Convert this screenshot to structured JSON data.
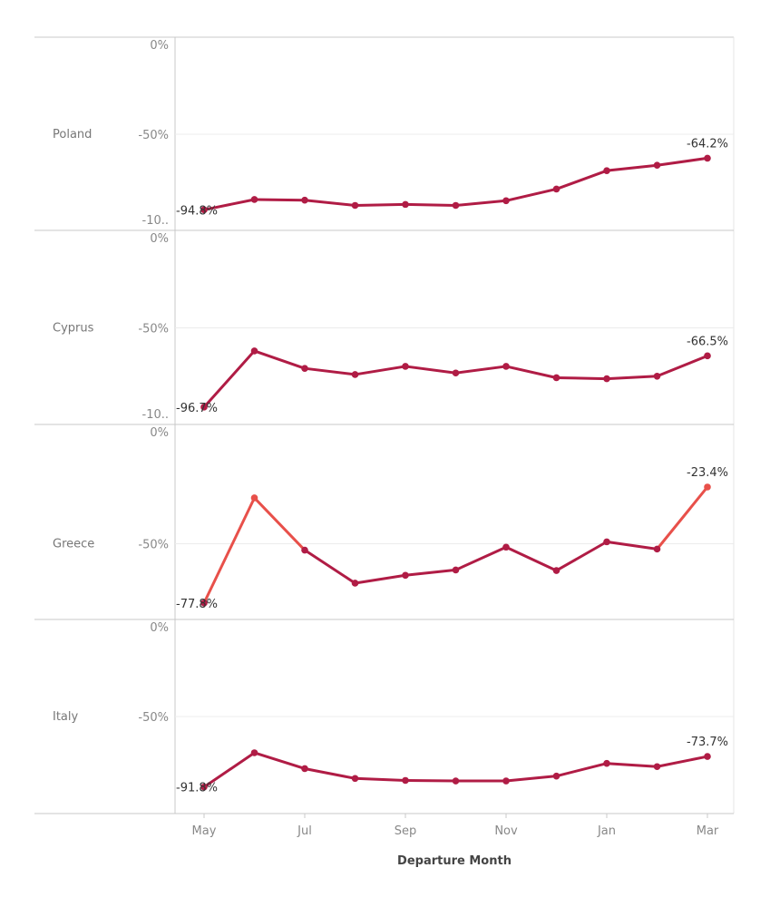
{
  "chart_data": {
    "type": "line",
    "x_title": "Departure Month",
    "x_tick_labels": [
      "May",
      "Jul",
      "Sep",
      "Nov",
      "Jan",
      "Mar"
    ],
    "x_tick_indices": [
      0,
      2,
      4,
      6,
      8,
      10
    ],
    "y_tick_labels": [
      "0%",
      "-50%",
      "-10.."
    ],
    "colors": {
      "line": "#b01c45",
      "highlight": "#e8504a",
      "grid": "#ececec",
      "border": "#c8c8c8"
    },
    "panels": [
      {
        "name": "Poland",
        "ylim": [
          -100,
          0
        ],
        "show_bottom_tick": true,
        "values": [
          -94.8,
          -88.7,
          -89.1,
          -92.2,
          -91.6,
          -92.2,
          -89.4,
          -82.5,
          -71.6,
          -68.4,
          -64.2
        ],
        "first_label": "-94.8%",
        "last_label": "-64.2%"
      },
      {
        "name": "Cyprus",
        "ylim": [
          -100,
          0
        ],
        "show_bottom_tick": true,
        "values": [
          -96.7,
          -63.6,
          -73.9,
          -77.5,
          -72.7,
          -76.6,
          -72.7,
          -79.4,
          -80.0,
          -78.5,
          -66.5
        ],
        "first_label": "-96.7%",
        "last_label": "-66.5%"
      },
      {
        "name": "Greece",
        "ylim": [
          -80,
          0
        ],
        "show_bottom_tick": false,
        "values": [
          -77.8,
          -28.5,
          -53.0,
          -68.5,
          -64.8,
          -62.3,
          -51.6,
          -62.6,
          -49.1,
          -52.5,
          -23.4
        ],
        "first_label": "-77.8%",
        "last_label": "-23.4%",
        "highlight_segments": [
          0,
          1,
          9
        ]
      },
      {
        "name": "Italy",
        "ylim": [
          -100,
          0
        ],
        "show_bottom_tick": false,
        "values": [
          -91.8,
          -71.5,
          -80.9,
          -86.7,
          -87.9,
          -88.2,
          -88.2,
          -85.3,
          -77.8,
          -79.7,
          -73.7
        ],
        "first_label": "-91.8%",
        "last_label": "-73.7%"
      }
    ]
  }
}
